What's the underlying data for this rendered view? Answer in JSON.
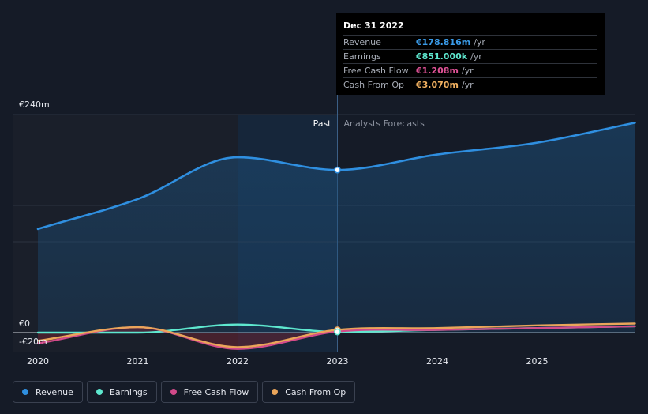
{
  "tooltip": {
    "date": "Dec 31 2022",
    "rows": [
      {
        "name": "Revenue",
        "value": "€178.816m",
        "unit": "/yr",
        "color": "#3a9be8"
      },
      {
        "name": "Earnings",
        "value": "€851.000k",
        "unit": "/yr",
        "color": "#5ee8cf"
      },
      {
        "name": "Free Cash Flow",
        "value": "€1.208m",
        "unit": "/yr",
        "color": "#e05297"
      },
      {
        "name": "Cash From Op",
        "value": "€3.070m",
        "unit": "/yr",
        "color": "#f0b060"
      }
    ]
  },
  "legend": [
    {
      "name": "Revenue",
      "color": "#2f8fe0"
    },
    {
      "name": "Earnings",
      "color": "#5ee8cf"
    },
    {
      "name": "Free Cash Flow",
      "color": "#d24a8a"
    },
    {
      "name": "Cash From Op",
      "color": "#eaa55a"
    }
  ],
  "chart_data": {
    "type": "line",
    "x_ticks": [
      2020,
      2021,
      2022,
      2023,
      2024,
      2025
    ],
    "x_tick_labels": [
      "2020",
      "2021",
      "2022",
      "2023",
      "2024",
      "2025"
    ],
    "xlim": [
      2019.75,
      2025.98
    ],
    "ylim": [
      -20,
      240
    ],
    "y_tick_labels": [
      {
        "value": 240,
        "label": "€240m"
      },
      {
        "value": 0,
        "label": "€0"
      },
      {
        "value": -20,
        "label": "-€20m"
      }
    ],
    "gridlines": [
      240,
      140,
      100,
      0
    ],
    "past_label": "Past",
    "forecast_label": "Analysts Forecasts",
    "divider_x": 2023,
    "highlight_start_x": 2022,
    "selected_x": 2023,
    "series": [
      {
        "name": "Revenue",
        "color": "#2f8fe0",
        "points": [
          [
            2020,
            114
          ],
          [
            2021,
            147
          ],
          [
            2022,
            193
          ],
          [
            2023,
            179
          ],
          [
            2024,
            196
          ],
          [
            2025,
            209
          ],
          [
            2025.98,
            231
          ]
        ]
      },
      {
        "name": "Earnings",
        "color": "#5ee8cf",
        "points": [
          [
            2020,
            0
          ],
          [
            2021,
            0
          ],
          [
            2022,
            9
          ],
          [
            2023,
            0.851
          ],
          [
            2024,
            3
          ],
          [
            2025,
            5
          ],
          [
            2025.98,
            7
          ]
        ]
      },
      {
        "name": "Free Cash Flow",
        "color": "#d24a8a",
        "points": [
          [
            2020,
            -12
          ],
          [
            2021,
            6
          ],
          [
            2022,
            -18
          ],
          [
            2023,
            1.208
          ],
          [
            2024,
            3
          ],
          [
            2025,
            5
          ],
          [
            2025.98,
            7
          ]
        ]
      },
      {
        "name": "Cash From Op",
        "color": "#eaa55a",
        "points": [
          [
            2020,
            -9
          ],
          [
            2021,
            6
          ],
          [
            2022,
            -16
          ],
          [
            2023,
            3.07
          ],
          [
            2024,
            5
          ],
          [
            2025,
            8
          ],
          [
            2025.98,
            10
          ]
        ]
      }
    ]
  }
}
